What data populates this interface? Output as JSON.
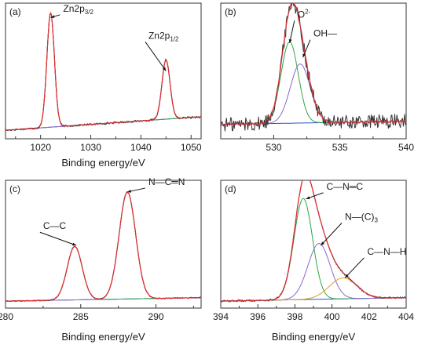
{
  "chart_data": [
    {
      "panel_label": "(a)",
      "type": "line",
      "xlabel": "Binding energy/eV",
      "xlim": [
        1013,
        1052
      ],
      "xticks": [
        1020,
        1030,
        1040,
        1050
      ],
      "baseline": {
        "start": 1.0,
        "end": 2.6
      },
      "peaks": [
        {
          "center": 1022.0,
          "height": 13.5,
          "width": 0.75,
          "color": "#2aa64a"
        },
        {
          "center": 1045.0,
          "height": 7.0,
          "width": 0.8,
          "color": "#8a6ac8"
        }
      ],
      "noise": 0.12,
      "ylim": [
        0,
        16
      ],
      "annotations": [
        {
          "prefix": "Zn2p",
          "sub": "3/2",
          "suffix": "",
          "x": 1022.0,
          "y": 14.3,
          "tx": 1024.5,
          "ty": 15.0
        },
        {
          "prefix": "Zn2p",
          "sub": "1/2",
          "suffix": "",
          "x": 1045.0,
          "y": 8.0,
          "tx": 1041.5,
          "ty": 11.8
        }
      ]
    },
    {
      "panel_label": "(b)",
      "type": "line",
      "xlabel": "",
      "xlim": [
        526,
        540
      ],
      "xticks": [
        530,
        535,
        540
      ],
      "baseline": {
        "start": 0.9,
        "end": 1.1
      },
      "peaks": [
        {
          "center": 531.2,
          "height": 5.1,
          "width": 0.65,
          "color": "#2aa64a"
        },
        {
          "center": 532.0,
          "height": 3.7,
          "width": 0.75,
          "color": "#8a6ac8"
        }
      ],
      "noise": 0.45,
      "ylim": [
        0,
        8.5
      ],
      "annotations": [
        {
          "prefix": "O",
          "sup": "2-",
          "suffix": "",
          "x": 531.2,
          "y": 6.0,
          "tx": 531.8,
          "ty": 7.6
        },
        {
          "prefix": "OH",
          "sub": "",
          "suffix": "—",
          "x": 532.2,
          "y": 5.1,
          "tx": 533.0,
          "ty": 6.4
        }
      ]
    },
    {
      "panel_label": "(c)",
      "type": "line",
      "xlabel": "Binding energy/eV",
      "xlim": [
        280,
        293
      ],
      "xticks": [
        280,
        285,
        290
      ],
      "baseline": {
        "start": 0.6,
        "end": 0.9
      },
      "peaks": [
        {
          "center": 284.6,
          "height": 4.6,
          "width": 0.5,
          "color": "#2aa64a"
        },
        {
          "center": 288.1,
          "height": 9.2,
          "width": 0.55,
          "color": "#8a6ac8"
        }
      ],
      "noise": 0.05,
      "ylim": [
        0,
        11
      ],
      "annotations": [
        {
          "prefix": "C—C",
          "sub": "",
          "suffix": "",
          "x": 284.7,
          "y": 5.4,
          "tx": 282.5,
          "ty": 6.8
        },
        {
          "prefix": "N—C═N",
          "sub": "",
          "suffix": "",
          "x": 288.1,
          "y": 10.0,
          "tx": 289.5,
          "ty": 10.6
        }
      ]
    },
    {
      "panel_label": "(d)",
      "type": "line",
      "xlabel": "Binding energy/eV",
      "xlim": [
        394,
        404
      ],
      "xticks": [
        394,
        396,
        398,
        400,
        402,
        404
      ],
      "baseline": {
        "start": 0.6,
        "end": 0.9
      },
      "peaks": [
        {
          "center": 398.45,
          "height": 8.7,
          "width": 0.5,
          "color": "#2aa64a"
        },
        {
          "center": 399.3,
          "height": 4.8,
          "width": 0.6,
          "color": "#8a6ac8"
        },
        {
          "center": 400.6,
          "height": 1.8,
          "width": 0.75,
          "color": "#e0a020"
        }
      ],
      "noise": 0.08,
      "ylim": [
        0,
        11
      ],
      "annotations": [
        {
          "prefix": "C—N═C",
          "sub": "",
          "suffix": "",
          "x": 398.6,
          "y": 9.4,
          "tx": 399.7,
          "ty": 10.2
        },
        {
          "prefix": "N—(C)",
          "sub": "3",
          "suffix": "",
          "x": 399.4,
          "y": 5.4,
          "tx": 400.7,
          "ty": 7.6
        },
        {
          "prefix": "C—N—H",
          "sub": "",
          "suffix": "",
          "x": 400.7,
          "y": 2.6,
          "tx": 401.9,
          "ty": 4.6
        }
      ]
    }
  ],
  "colors": {
    "raw": "#333333",
    "fit": "#e03030",
    "background": "#3050c8",
    "envelope": "#a878d0"
  }
}
